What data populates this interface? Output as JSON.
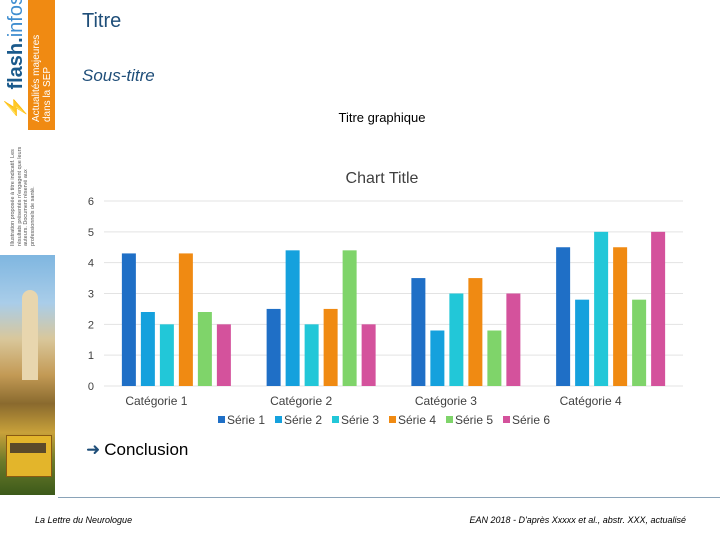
{
  "header": {
    "title": "Titre",
    "subtitle": "Sous-titre",
    "graph_title": "Titre graphique"
  },
  "sidebar": {
    "logo_text_bold": "flash.",
    "logo_text_light": "infos",
    "tagline_line1": "Actualités majeures",
    "tagline_line2": "dans la SEP",
    "disclaimer": "Illustration proposée à titre indicatif. Les résultats présentés n'engagent que leurs auteurs. Document réservé aux professionnels de santé."
  },
  "chart_data": {
    "type": "bar",
    "title": "Chart Title",
    "categories": [
      "Catégorie 1",
      "Catégorie 2",
      "Catégorie 3",
      "Catégorie 4"
    ],
    "ylim": [
      0,
      6
    ],
    "yticks": [
      0,
      1,
      2,
      3,
      4,
      5,
      6
    ],
    "grid": true,
    "legend_position": "bottom",
    "series": [
      {
        "name": "Série 1",
        "color": "#1f6fc6",
        "values": [
          4.3,
          2.5,
          3.5,
          4.5
        ]
      },
      {
        "name": "Série 2",
        "color": "#15a1dd",
        "values": [
          2.4,
          4.4,
          1.8,
          2.8
        ]
      },
      {
        "name": "Série 3",
        "color": "#22c7d8",
        "values": [
          2.0,
          2.0,
          3.0,
          5.0
        ]
      },
      {
        "name": "Série 4",
        "color": "#f08a12",
        "values": [
          4.3,
          2.5,
          3.5,
          4.5
        ]
      },
      {
        "name": "Série 5",
        "color": "#7fd46a",
        "values": [
          2.4,
          4.4,
          1.8,
          2.8
        ]
      },
      {
        "name": "Série 6",
        "color": "#d4529c",
        "values": [
          2.0,
          2.0,
          3.0,
          5.0
        ]
      }
    ]
  },
  "conclusion": {
    "arrow": "➜",
    "text": "Conclusion"
  },
  "footer": {
    "left": "La Lettre du Neurologue",
    "right": "EAN 2018 - D'après Xxxxx et al., abstr. XXX, actualisé"
  }
}
